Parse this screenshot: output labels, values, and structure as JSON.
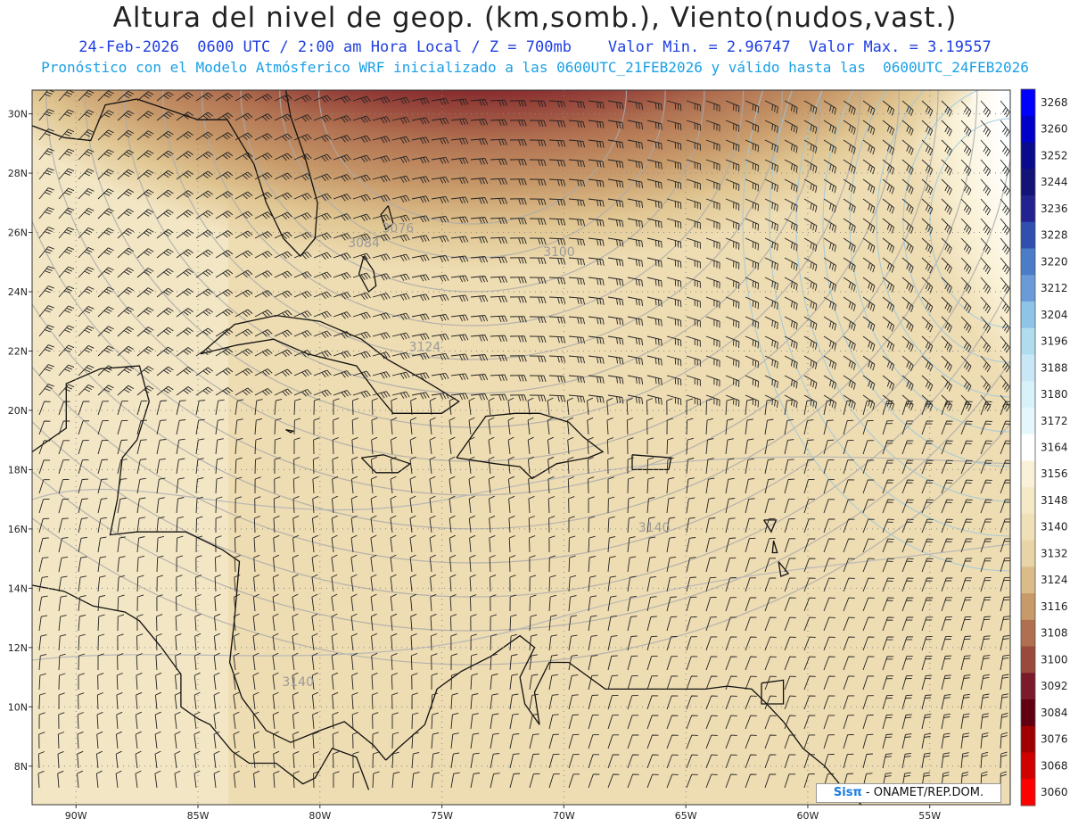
{
  "header": {
    "title": "Altura del nivel de geop. (km,somb.), Viento(nudos,vast.)",
    "line1": "24-Feb-2026  0600 UTC / 2:00 am Hora Local / Z = 700mb    Valor Min. = 2.96747  Valor Max. = 3.19557",
    "line2": "Pronóstico con el Modelo Atmósferico WRF inicializado a las 0600UTC_21FEB2026 y válido hasta las  0600UTC_24FEB2026"
  },
  "map": {
    "lat_labels": [
      "30N",
      "28N",
      "26N",
      "24N",
      "22N",
      "20N",
      "18N",
      "16N",
      "14N",
      "12N",
      "10N",
      "8N"
    ],
    "lat_values": [
      30,
      28,
      26,
      24,
      22,
      20,
      18,
      16,
      14,
      12,
      10,
      8
    ],
    "lon_labels": [
      "90W",
      "85W",
      "80W",
      "75W",
      "70W",
      "65W",
      "60W",
      "55W"
    ],
    "lon_values": [
      -90,
      -85,
      -80,
      -75,
      -70,
      -65,
      -60,
      -55
    ],
    "lat_range": [
      6.7,
      30.8
    ],
    "lon_range": [
      -91.8,
      -51.7
    ],
    "contour_labels": [
      {
        "text": "3076",
        "lon": -76.8,
        "lat": 26.0
      },
      {
        "text": "3084",
        "lon": -78.2,
        "lat": 25.5
      },
      {
        "text": "3100",
        "lon": -70.2,
        "lat": 25.2
      },
      {
        "text": "3124",
        "lon": -75.7,
        "lat": 22.0
      },
      {
        "text": "3140",
        "lon": -66.3,
        "lat": 15.9
      },
      {
        "text": "3140",
        "lon": -80.9,
        "lat": 10.7
      }
    ]
  },
  "colorbar": {
    "labels": [
      "3268",
      "3260",
      "3252",
      "3244",
      "3236",
      "3228",
      "3220",
      "3212",
      "3204",
      "3196",
      "3188",
      "3180",
      "3172",
      "3164",
      "3156",
      "3148",
      "3140",
      "3132",
      "3124",
      "3116",
      "3108",
      "3100",
      "3092",
      "3084",
      "3076",
      "3068",
      "3060"
    ],
    "colors": [
      "#0000ff",
      "#0000c8",
      "#0a0a8c",
      "#141478",
      "#232390",
      "#3050b0",
      "#4a7cc8",
      "#6a9ad8",
      "#8ec4e8",
      "#b0dcf0",
      "#c8e8f6",
      "#d8f2fa",
      "#e4f8fc",
      "#ffffff",
      "#faf2d8",
      "#f5e9c8",
      "#f0e0b8",
      "#e8d4a6",
      "#d9bc88",
      "#c89a6a",
      "#b07050",
      "#9a4a3a",
      "#7a1a2a",
      "#600010",
      "#a00000",
      "#d00000",
      "#ff0000"
    ]
  },
  "credit": {
    "sis": "Sisπ",
    "rest": " - ONAMET/REP.DOM."
  }
}
